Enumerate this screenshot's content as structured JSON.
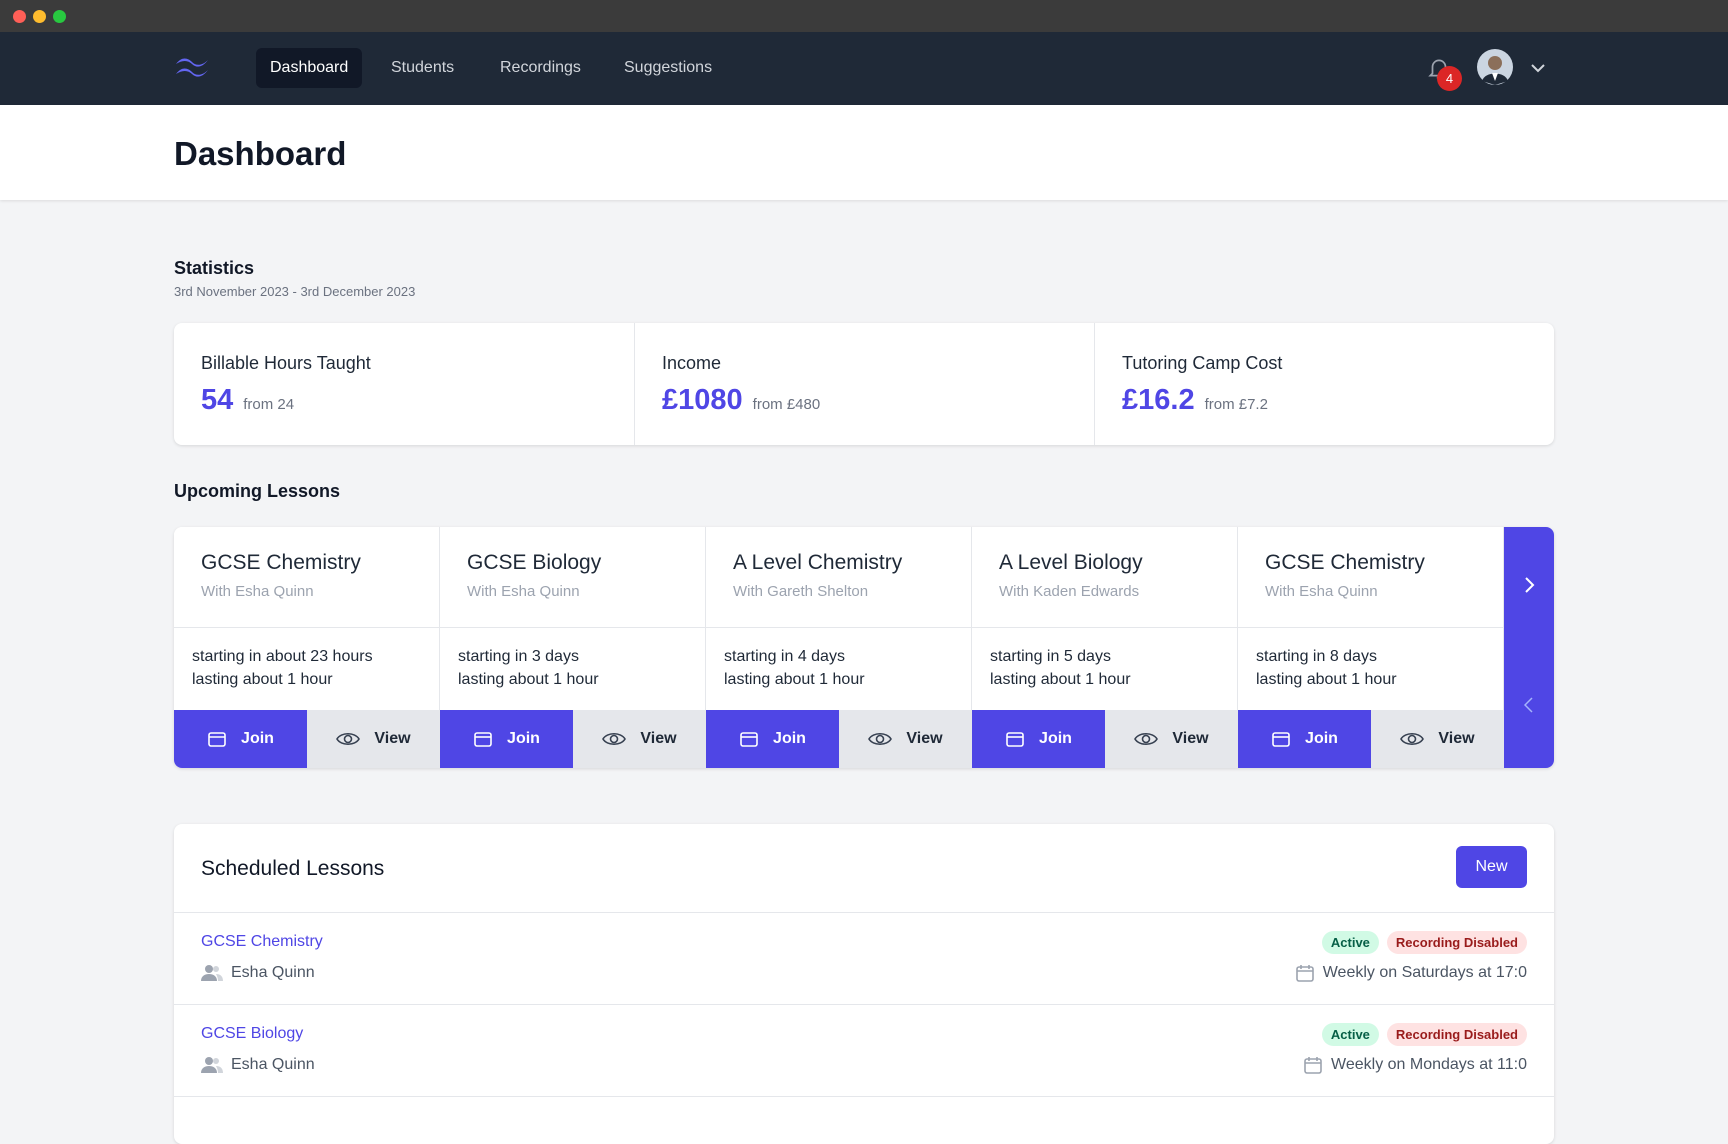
{
  "nav": {
    "items": [
      "Dashboard",
      "Students",
      "Recordings",
      "Suggestions"
    ],
    "notifications": "4"
  },
  "header": {
    "title": "Dashboard"
  },
  "statistics": {
    "title": "Statistics",
    "period": "3rd November 2023 - 3rd December 2023",
    "items": [
      {
        "label": "Billable Hours Taught",
        "value": "54",
        "previous": "from 24"
      },
      {
        "label": "Income",
        "value": "£1080",
        "previous": "from £480"
      },
      {
        "label": "Tutoring Camp Cost",
        "value": "£16.2",
        "previous": "from £7.2"
      }
    ]
  },
  "upcoming": {
    "title": "Upcoming Lessons",
    "join": "Join",
    "view": "View",
    "lessons": [
      {
        "title": "GCSE Chemistry",
        "with": "With Esha Quinn",
        "starting": "starting in about 23 hours",
        "lasting": "lasting about 1 hour"
      },
      {
        "title": "GCSE Biology",
        "with": "With Esha Quinn",
        "starting": "starting in 3 days",
        "lasting": "lasting about 1 hour"
      },
      {
        "title": "A Level Chemistry",
        "with": "With Gareth Shelton",
        "starting": "starting in 4 days",
        "lasting": "lasting about 1 hour"
      },
      {
        "title": "A Level Biology",
        "with": "With Kaden Edwards",
        "starting": "starting in 5 days",
        "lasting": "lasting about 1 hour"
      },
      {
        "title": "GCSE Chemistry",
        "with": "With Esha Quinn",
        "starting": "starting in 8 days",
        "lasting": "lasting about 1 hour"
      }
    ]
  },
  "scheduled": {
    "title": "Scheduled Lessons",
    "new_button": "New",
    "rows": [
      {
        "title": "GCSE Chemistry",
        "student": "Esha Quinn",
        "status": "Active",
        "recording": "Recording Disabled",
        "schedule": "Weekly on Saturdays at 17:0"
      },
      {
        "title": "GCSE Biology",
        "student": "Esha Quinn",
        "status": "Active",
        "recording": "Recording Disabled",
        "schedule": "Weekly on Mondays at 11:0"
      }
    ]
  }
}
